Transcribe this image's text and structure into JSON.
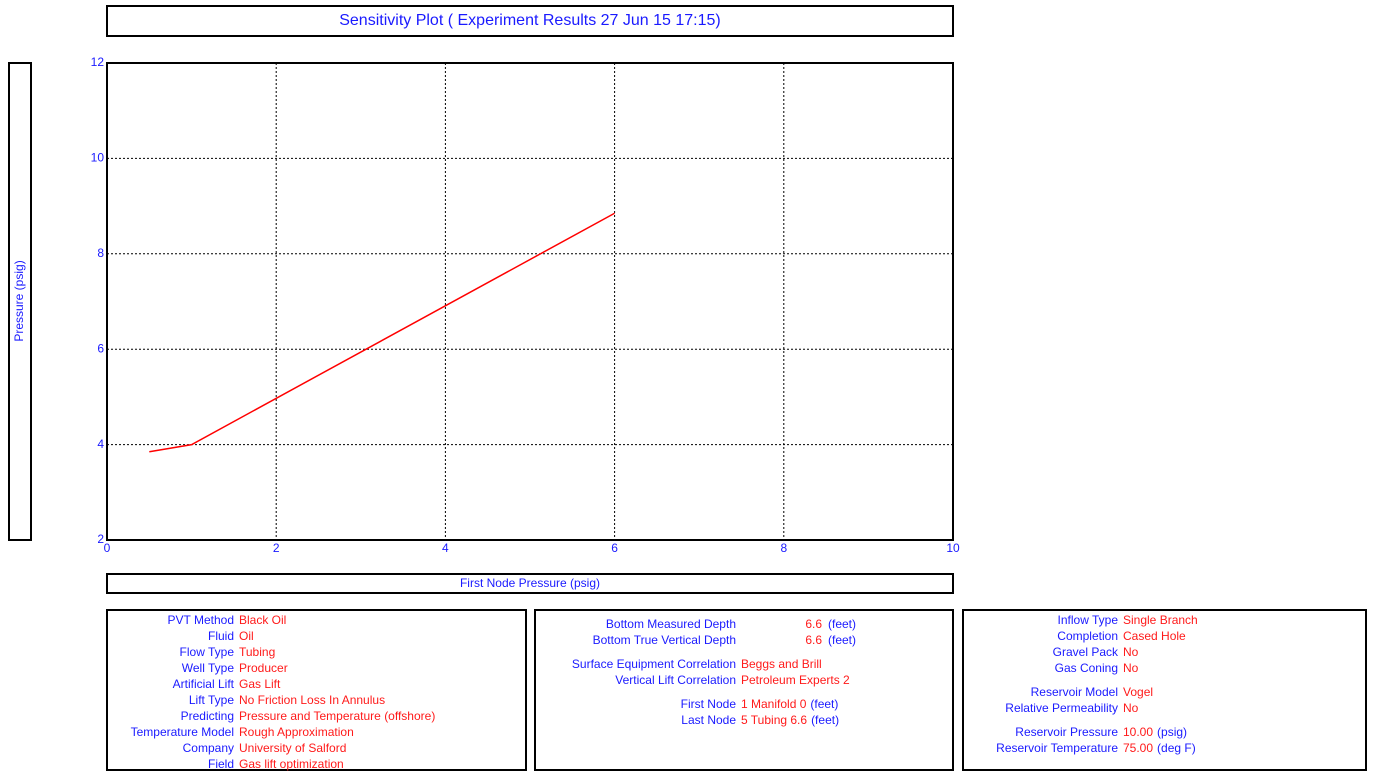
{
  "chart_data": {
    "type": "line",
    "title": "Sensitivity Plot ( Experiment Results  27 Jun 15  17:15)",
    "xlabel": "First Node Pressure  (psig)",
    "ylabel": "Pressure  (psig)",
    "x": [
      0.5,
      1,
      6
    ],
    "values": [
      3.85,
      4.0,
      8.85
    ],
    "color": "#ff0000",
    "xlim": [
      0,
      10
    ],
    "xticks": [
      0,
      2,
      4,
      6,
      8,
      10
    ],
    "ylim": [
      2,
      12
    ],
    "yticks": [
      2,
      4,
      6,
      8,
      10,
      12
    ],
    "grid": true
  },
  "panels": [
    {
      "groups": [
        [
          {
            "label": "PVT Method",
            "value": "Black Oil"
          },
          {
            "label": "Fluid",
            "value": "Oil"
          },
          {
            "label": "Flow Type",
            "value": "Tubing"
          },
          {
            "label": "Well Type",
            "value": "Producer"
          },
          {
            "label": "Artificial Lift",
            "value": "Gas Lift"
          },
          {
            "label": "Lift Type",
            "value": "No Friction Loss In Annulus"
          },
          {
            "label": "Predicting",
            "value": "Pressure and Temperature (offshore)"
          },
          {
            "label": "Temperature Model",
            "value": "Rough Approximation"
          },
          {
            "label": "Company",
            "value": "University of Salford"
          },
          {
            "label": "Field",
            "value": "Gas lift optimization"
          }
        ]
      ]
    },
    {
      "groups": [
        [
          {
            "label": "Bottom Measured Depth",
            "value": "6.6",
            "unit": "(feet)"
          },
          {
            "label": "Bottom True Vertical Depth",
            "value": "6.6",
            "unit": "(feet)"
          }
        ],
        [
          {
            "label": "Surface Equipment Correlation",
            "value": "Beggs and Brill"
          },
          {
            "label": "Vertical Lift Correlation",
            "value": "Petroleum Experts 2"
          }
        ],
        [
          {
            "label": "First Node",
            "value": "1 Manifold 0",
            "unit": "(feet)"
          },
          {
            "label": "Last Node",
            "value": "5 Tubing 6.6",
            "unit": "(feet)"
          }
        ]
      ]
    },
    {
      "groups": [
        [
          {
            "label": "Inflow Type",
            "value": "Single Branch"
          },
          {
            "label": "Completion",
            "value": "Cased Hole"
          },
          {
            "label": "Gravel Pack",
            "value": "No"
          },
          {
            "label": "Gas Coning",
            "value": "No"
          }
        ],
        [
          {
            "label": "Reservoir Model",
            "value": "Vogel"
          },
          {
            "label": "Relative Permeability",
            "value": "No"
          }
        ],
        [
          {
            "label": "Reservoir Pressure",
            "value": "10.00",
            "unit": "(psig)"
          },
          {
            "label": "Reservoir Temperature",
            "value": "75.00",
            "unit": "(deg F)"
          }
        ]
      ]
    }
  ]
}
